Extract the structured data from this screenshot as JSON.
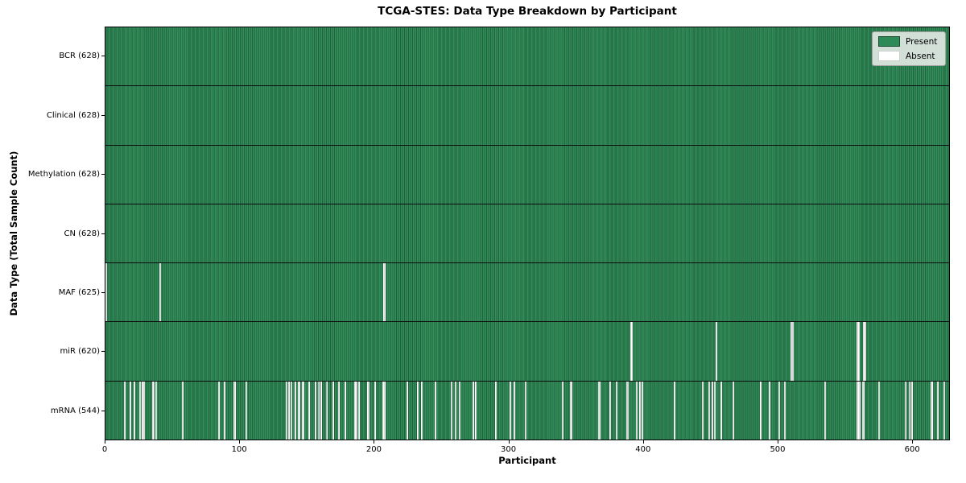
{
  "chart_data": {
    "type": "heatmap",
    "title": "TCGA-STES: Data Type Breakdown by Participant",
    "xlabel": "Participant",
    "ylabel": "Data Type (Total Sample Count)",
    "n_participants": 628,
    "x_ticks": [
      0,
      100,
      200,
      300,
      400,
      500,
      600
    ],
    "grid": false,
    "legend_position": "upper right",
    "legend": [
      {
        "label": "Present",
        "color": "#2e8b57"
      },
      {
        "label": "Absent",
        "color": "#ffffff"
      }
    ],
    "colors": {
      "present": "#2e8b57",
      "absent": "#ffffff",
      "bar_edge": "rgba(0,0,0,0.30)"
    },
    "rows": [
      {
        "label": "BCR (628)",
        "name": "bcr",
        "present_count": 628,
        "absent_participants": []
      },
      {
        "label": "Clinical (628)",
        "name": "clinical",
        "present_count": 628,
        "absent_participants": []
      },
      {
        "label": "Methylation (628)",
        "name": "methylation",
        "present_count": 628,
        "absent_participants": []
      },
      {
        "label": "CN (628)",
        "name": "cn",
        "present_count": 628,
        "absent_participants": []
      },
      {
        "label": "MAF (625)",
        "name": "maf",
        "present_count": 625,
        "absent_participants": [
          0,
          40,
          207
        ]
      },
      {
        "label": "miR (620)",
        "name": "mir",
        "present_count": 620,
        "absent_participants": [
          391,
          454,
          510,
          511,
          559,
          560,
          564,
          565
        ]
      },
      {
        "label": "mRNA (544)",
        "name": "mrna",
        "present_count": 544,
        "absent_participants": [
          14,
          18,
          21,
          25,
          27,
          28,
          35,
          37,
          57,
          84,
          88,
          95,
          96,
          104,
          134,
          136,
          138,
          141,
          143,
          144,
          146,
          147,
          151,
          156,
          158,
          160,
          164,
          169,
          173,
          178,
          185,
          186,
          188,
          195,
          200,
          206,
          207,
          224,
          232,
          235,
          245,
          257,
          260,
          263,
          273,
          275,
          290,
          301,
          304,
          312,
          340,
          346,
          367,
          375,
          380,
          388,
          395,
          397,
          399,
          423,
          444,
          449,
          451,
          453,
          458,
          467,
          487,
          494,
          501,
          505,
          535,
          559,
          560,
          561,
          563,
          564,
          575,
          595,
          598,
          600,
          614,
          615,
          619,
          624
        ]
      }
    ]
  }
}
